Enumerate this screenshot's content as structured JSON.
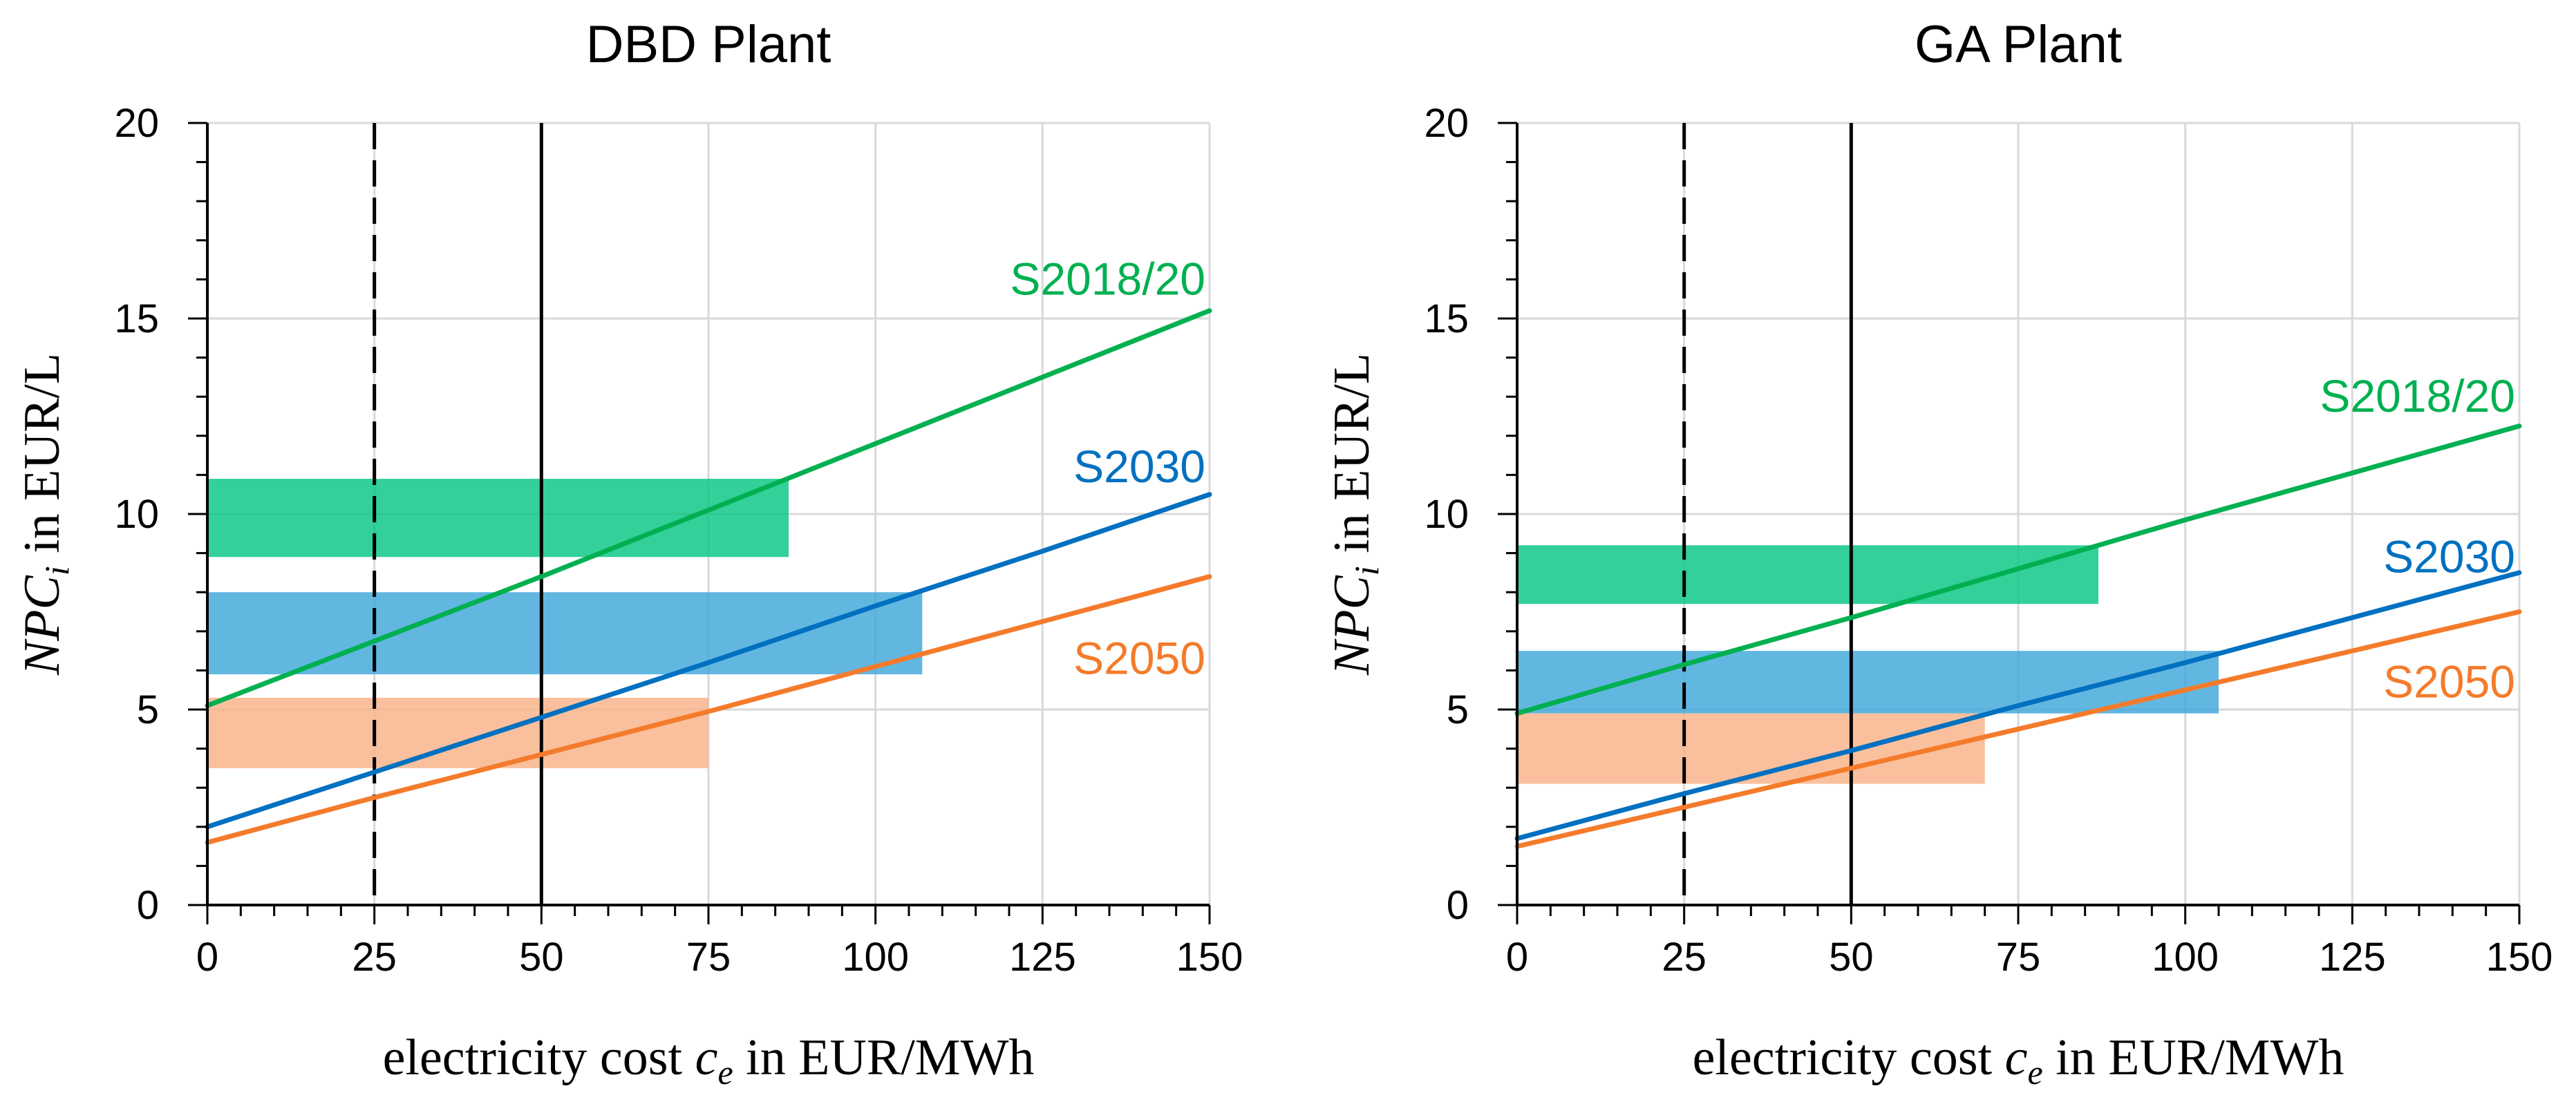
{
  "chart_data": [
    {
      "type": "line",
      "title": "DBD Plant",
      "xlabel": {
        "prefix": "electricity cost ",
        "var": "c",
        "sub": "e",
        "suffix": " in EUR/MWh"
      },
      "ylabel": {
        "var": "NPC",
        "sub": "i",
        "suffix": " in EUR/L"
      },
      "xlim": [
        0,
        150
      ],
      "ylim": [
        0,
        20
      ],
      "xticks": [
        0,
        25,
        50,
        75,
        100,
        125,
        150
      ],
      "yticks": [
        0,
        5,
        10,
        15,
        20
      ],
      "grid": true,
      "vlines": [
        {
          "x": 25,
          "style": "dashed"
        },
        {
          "x": 50,
          "style": "solid"
        }
      ],
      "bands": [
        {
          "name": "S2018/20",
          "ymin": 8.9,
          "ymax": 10.9,
          "xmax": 87,
          "color": "#00C47F"
        },
        {
          "name": "S2030",
          "ymin": 5.9,
          "ymax": 8.0,
          "xmax": 107,
          "color": "#3BA5D9"
        },
        {
          "name": "S2050",
          "ymin": 3.5,
          "ymax": 5.3,
          "xmax": 75,
          "color": "#F9B084"
        }
      ],
      "series": [
        {
          "name": "S2018/20",
          "color": "#00B050",
          "x": [
            0,
            25,
            50,
            75,
            100,
            125,
            150
          ],
          "y": [
            5.1,
            6.75,
            8.4,
            10.1,
            11.8,
            13.5,
            15.2
          ]
        },
        {
          "name": "S2030",
          "color": "#0070C0",
          "x": [
            0,
            25,
            50,
            75,
            100,
            125,
            150
          ],
          "y": [
            2.0,
            3.4,
            4.8,
            6.2,
            7.65,
            9.05,
            10.5
          ]
        },
        {
          "name": "S2050",
          "color": "#F47B2B",
          "x": [
            0,
            25,
            50,
            75,
            100,
            125,
            150
          ],
          "y": [
            1.6,
            2.75,
            3.85,
            4.95,
            6.1,
            7.25,
            8.4
          ]
        }
      ],
      "series_labels": [
        {
          "text": "S2018/20",
          "x": 150,
          "y": 16.0,
          "color": "#00B050"
        },
        {
          "text": "S2030",
          "x": 150,
          "y": 11.2,
          "color": "#0070C0"
        },
        {
          "text": "S2050",
          "x": 150,
          "y": 6.3,
          "color": "#F47B2B"
        }
      ]
    },
    {
      "type": "line",
      "title": "GA Plant",
      "xlabel": {
        "prefix": "electricity cost ",
        "var": "c",
        "sub": "e",
        "suffix": " in EUR/MWh"
      },
      "ylabel": {
        "var": "NPC",
        "sub": "i",
        "suffix": " in EUR/L"
      },
      "xlim": [
        0,
        150
      ],
      "ylim": [
        0,
        20
      ],
      "xticks": [
        0,
        25,
        50,
        75,
        100,
        125,
        150
      ],
      "yticks": [
        0,
        5,
        10,
        15,
        20
      ],
      "grid": true,
      "vlines": [
        {
          "x": 25,
          "style": "dashed"
        },
        {
          "x": 50,
          "style": "solid"
        }
      ],
      "bands": [
        {
          "name": "S2018/20",
          "ymin": 7.7,
          "ymax": 9.2,
          "xmax": 87,
          "color": "#00C47F"
        },
        {
          "name": "S2030",
          "ymin": 4.9,
          "ymax": 6.5,
          "xmax": 105,
          "color": "#3BA5D9"
        },
        {
          "name": "S2050",
          "ymin": 3.1,
          "ymax": 4.9,
          "xmax": 70,
          "color": "#F9B084"
        }
      ],
      "series": [
        {
          "name": "S2018/20",
          "color": "#00B050",
          "x": [
            0,
            25,
            50,
            75,
            100,
            125,
            150
          ],
          "y": [
            4.9,
            6.15,
            7.35,
            8.6,
            9.85,
            11.05,
            12.25
          ]
        },
        {
          "name": "S2030",
          "color": "#0070C0",
          "x": [
            0,
            25,
            50,
            75,
            100,
            125,
            150
          ],
          "y": [
            1.7,
            2.85,
            3.95,
            5.1,
            6.2,
            7.35,
            8.5
          ]
        },
        {
          "name": "S2050",
          "color": "#F47B2B",
          "x": [
            0,
            25,
            50,
            75,
            100,
            125,
            150
          ],
          "y": [
            1.5,
            2.5,
            3.5,
            4.5,
            5.5,
            6.5,
            7.5
          ]
        }
      ],
      "series_labels": [
        {
          "text": "S2018/20",
          "x": 150,
          "y": 13.0,
          "color": "#00B050"
        },
        {
          "text": "S2030",
          "x": 150,
          "y": 8.9,
          "color": "#0070C0"
        },
        {
          "text": "S2050",
          "x": 150,
          "y": 5.7,
          "color": "#F47B2B"
        }
      ]
    }
  ]
}
